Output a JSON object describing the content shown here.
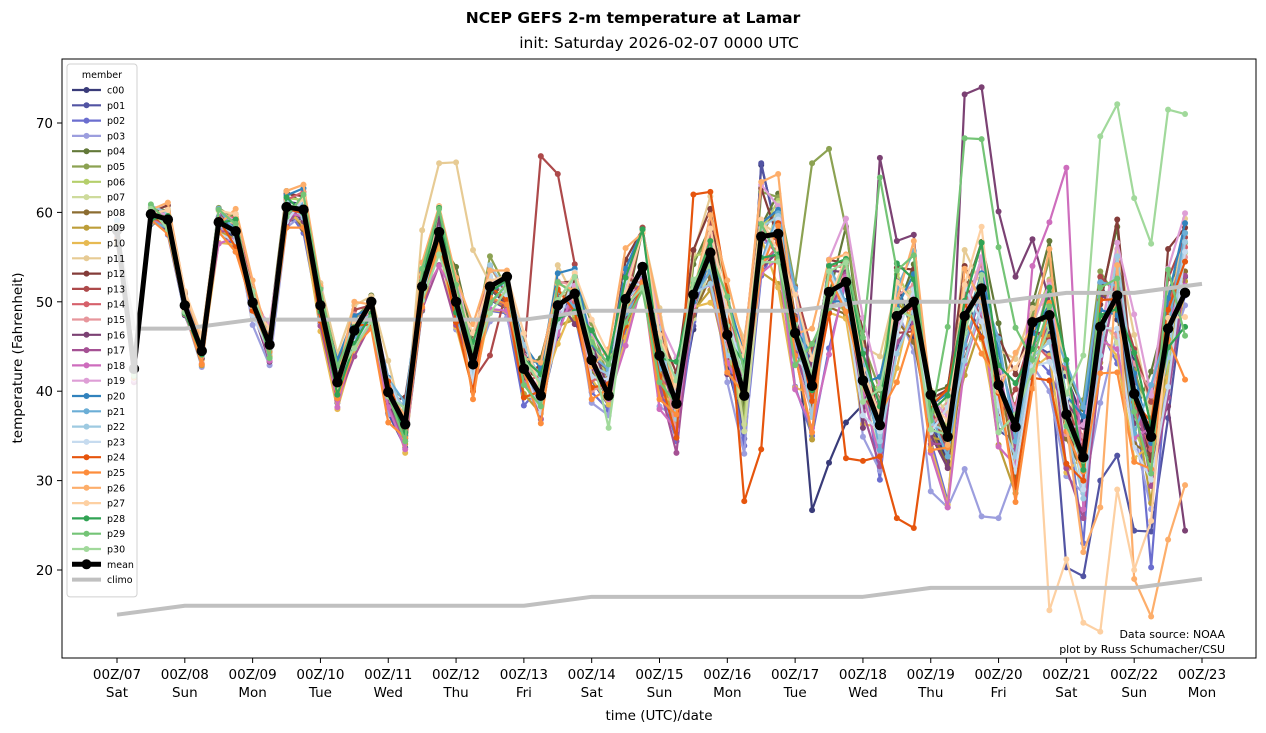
{
  "chart_data": {
    "type": "line",
    "title": "NCEP GEFS 2-m temperature at Lamar",
    "subtitle": "init: Saturday 2026-02-07 0000 UTC",
    "xlabel": "time (UTC)/date",
    "ylabel": "temperature (Fahrenheit)",
    "ylim": [
      10,
      77
    ],
    "yticks": [
      20,
      30,
      40,
      50,
      60,
      70
    ],
    "x_hours_range": [
      0,
      384
    ],
    "x_step_hours": 6,
    "xticks": [
      {
        "hour": 0,
        "line1": "00Z/07",
        "line2": "Sat"
      },
      {
        "hour": 24,
        "line1": "00Z/08",
        "line2": "Sun"
      },
      {
        "hour": 48,
        "line1": "00Z/09",
        "line2": "Mon"
      },
      {
        "hour": 72,
        "line1": "00Z/10",
        "line2": "Tue"
      },
      {
        "hour": 96,
        "line1": "00Z/11",
        "line2": "Wed"
      },
      {
        "hour": 120,
        "line1": "00Z/12",
        "line2": "Thu"
      },
      {
        "hour": 144,
        "line1": "00Z/13",
        "line2": "Fri"
      },
      {
        "hour": 168,
        "line1": "00Z/14",
        "line2": "Sat"
      },
      {
        "hour": 192,
        "line1": "00Z/15",
        "line2": "Sun"
      },
      {
        "hour": 216,
        "line1": "00Z/16",
        "line2": "Mon"
      },
      {
        "hour": 240,
        "line1": "00Z/17",
        "line2": "Tue"
      },
      {
        "hour": 264,
        "line1": "00Z/18",
        "line2": "Wed"
      },
      {
        "hour": 288,
        "line1": "00Z/19",
        "line2": "Thu"
      },
      {
        "hour": 312,
        "line1": "00Z/20",
        "line2": "Fri"
      },
      {
        "hour": 336,
        "line1": "00Z/21",
        "line2": "Sat"
      },
      {
        "hour": 360,
        "line1": "00Z/22",
        "line2": "Sun"
      },
      {
        "hour": 384,
        "line1": "00Z/23",
        "line2": "Mon"
      }
    ],
    "legend": {
      "title": "member",
      "placement": "upper-left"
    },
    "annotation": [
      "Data source: NOAA",
      "plot by Russ Schumacher/CSU"
    ],
    "mean": {
      "name": "mean",
      "color": "#000000",
      "values": [
        58.0,
        42.5,
        59.8,
        59.2,
        49.6,
        44.5,
        58.9,
        57.9,
        49.9,
        45.2,
        60.6,
        60.3,
        49.6,
        41.0,
        46.8,
        50.0,
        39.9,
        36.3,
        51.7,
        57.8,
        50.0,
        43.0,
        51.7,
        52.8,
        42.5,
        39.5,
        49.6,
        50.9,
        43.5,
        39.5,
        50.3,
        53.9,
        44.0,
        38.6,
        50.8,
        55.5,
        46.3,
        39.5,
        57.3,
        57.6,
        46.5,
        40.6,
        51.1,
        52.2,
        41.2,
        36.2,
        48.4,
        50.0,
        39.6,
        34.9,
        48.4,
        51.5,
        40.7,
        36.0,
        47.7,
        48.5,
        37.4,
        32.6,
        47.2,
        50.7,
        39.7,
        34.9,
        47.0,
        51.0
      ]
    },
    "climo_high": {
      "name": "climo",
      "color": "#c0c0c0",
      "points": [
        [
          0,
          58
        ],
        [
          6,
          47
        ],
        [
          24,
          47
        ],
        [
          48,
          48
        ],
        [
          144,
          48
        ],
        [
          168,
          49
        ],
        [
          240,
          49
        ],
        [
          264,
          50
        ],
        [
          312,
          50
        ],
        [
          336,
          51
        ],
        [
          360,
          51
        ],
        [
          384,
          52
        ]
      ]
    },
    "climo_low": {
      "name": "climo",
      "color": "#c0c0c0",
      "points": [
        [
          0,
          15
        ],
        [
          24,
          16
        ],
        [
          144,
          16
        ],
        [
          168,
          17
        ],
        [
          264,
          17
        ],
        [
          288,
          18
        ],
        [
          360,
          18
        ],
        [
          384,
          19
        ]
      ]
    },
    "members": [
      {
        "name": "c00",
        "color": "#393b79"
      },
      {
        "name": "p01",
        "color": "#5254a3"
      },
      {
        "name": "p02",
        "color": "#6b6ecf"
      },
      {
        "name": "p03",
        "color": "#9c9ede"
      },
      {
        "name": "p04",
        "color": "#637939"
      },
      {
        "name": "p05",
        "color": "#8ca252"
      },
      {
        "name": "p06",
        "color": "#b5cf6b"
      },
      {
        "name": "p07",
        "color": "#cedb9c"
      },
      {
        "name": "p08",
        "color": "#8c6d31"
      },
      {
        "name": "p09",
        "color": "#bd9e39"
      },
      {
        "name": "p10",
        "color": "#e7ba52"
      },
      {
        "name": "p11",
        "color": "#e7cb94"
      },
      {
        "name": "p12",
        "color": "#843c39"
      },
      {
        "name": "p13",
        "color": "#ad494a"
      },
      {
        "name": "p14",
        "color": "#d6616b"
      },
      {
        "name": "p15",
        "color": "#e7969c"
      },
      {
        "name": "p16",
        "color": "#7b4173"
      },
      {
        "name": "p17",
        "color": "#a55194"
      },
      {
        "name": "p18",
        "color": "#ce6dbd"
      },
      {
        "name": "p19",
        "color": "#de9ed6"
      },
      {
        "name": "p20",
        "color": "#3182bd"
      },
      {
        "name": "p21",
        "color": "#6baed6"
      },
      {
        "name": "p22",
        "color": "#9ecae1"
      },
      {
        "name": "p23",
        "color": "#c6dbef"
      },
      {
        "name": "p24",
        "color": "#e6550d"
      },
      {
        "name": "p25",
        "color": "#fd8d3c"
      },
      {
        "name": "p26",
        "color": "#fdae6b"
      },
      {
        "name": "p27",
        "color": "#fdd0a2"
      },
      {
        "name": "p28",
        "color": "#31a354"
      },
      {
        "name": "p29",
        "color": "#74c476"
      },
      {
        "name": "p30",
        "color": "#a1d99b"
      }
    ],
    "member_overrides": {
      "p16": {
        "50": 73.2,
        "51": 74.0,
        "52": 60.1,
        "53": 52.8,
        "54": 57.0,
        "47": 57.5,
        "46": 56.8,
        "45": 66.1,
        "63": 24.4,
        "62": 38.3
      },
      "p29": {
        "50": 68.3,
        "51": 68.2,
        "52": 56.1,
        "53": 47.1,
        "45": 63.9,
        "46": 53.5,
        "49": 47.2
      },
      "p30": {
        "58": 68.5,
        "59": 72.1,
        "60": 61.6,
        "61": 56.5,
        "62": 71.5,
        "63": 71.0,
        "57": 44.0
      },
      "p24": {
        "45": 32.7,
        "46": 25.8,
        "47": 24.7,
        "44": 32.2,
        "43": 32.5,
        "48": 38.4,
        "49": 40.2,
        "34": 62.0,
        "35": 62.3,
        "36": 51.0,
        "37": 27.7,
        "38": 33.5
      },
      "p27": {
        "55": 15.5,
        "56": 21.2,
        "57": 14.1,
        "58": 13.1,
        "59": 29.0,
        "60": 20.0,
        "61": 25.5
      },
      "p26": {
        "60": 19.0,
        "61": 14.8,
        "62": 23.4,
        "63": 29.5,
        "57": 22.0,
        "58": 27.0
      },
      "p01": {
        "56": 20.3,
        "57": 19.3,
        "58": 30.0,
        "59": 32.8,
        "60": 24.4,
        "61": 24.3,
        "62": 37.0,
        "38": 65.5
      },
      "p02": {
        "61": 20.3,
        "62": 44.0,
        "57": 23.0
      },
      "p03": {
        "50": 31.3,
        "51": 26.0,
        "52": 25.8,
        "48": 28.8,
        "49": 27.0
      },
      "p13": {
        "25": 66.3,
        "26": 64.3,
        "23": 51.5,
        "22": 44.0
      },
      "p11": {
        "19": 65.5,
        "20": 65.6,
        "21": 55.8,
        "18": 58.0
      },
      "c00": {
        "41": 26.7,
        "42": 32.0,
        "43": 36.5,
        "38": 65.3
      },
      "p05": {
        "42": 67.1,
        "41": 65.5
      },
      "p18": {
        "56": 65.0,
        "55": 58.9,
        "54": 54.0
      }
    }
  }
}
